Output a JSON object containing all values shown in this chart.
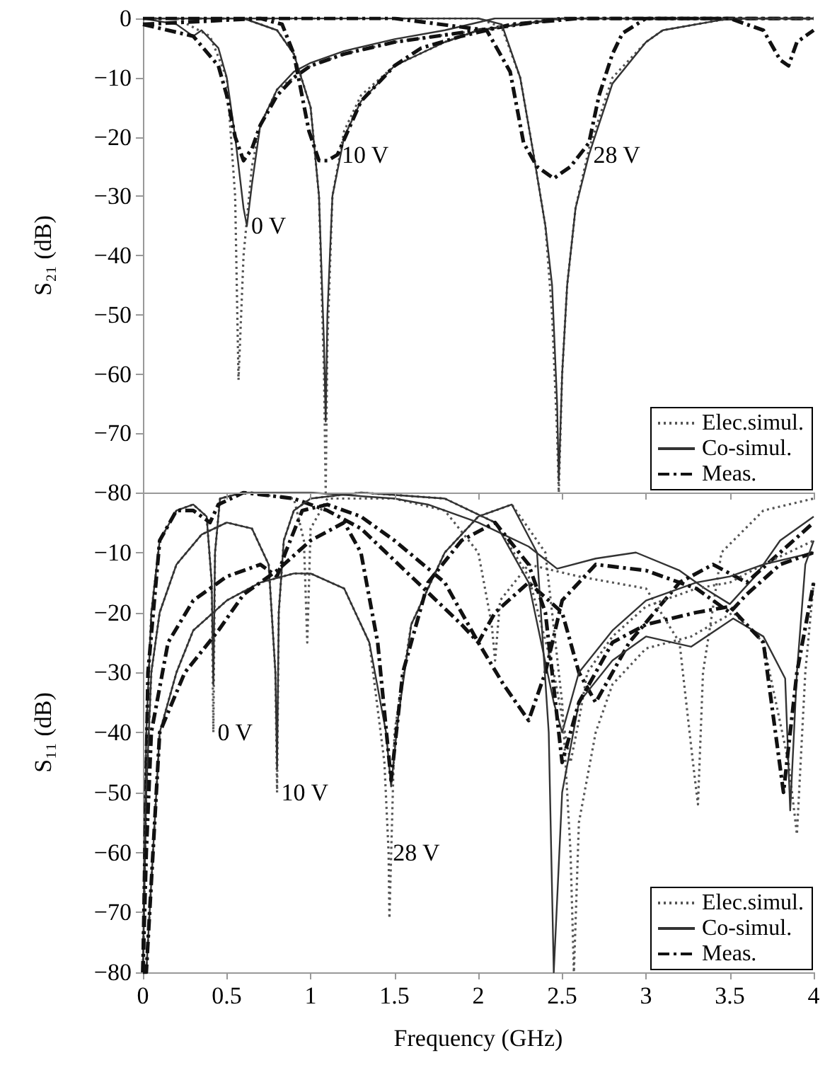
{
  "chart_data": [
    {
      "type": "line",
      "ylabel": "S₂₁ (dB)",
      "xlim": [
        0,
        4
      ],
      "xticks": [
        0,
        0.5,
        1,
        1.5,
        2,
        2.5,
        3,
        3.5,
        4
      ],
      "ylim": [
        -80,
        0
      ],
      "yticks": [
        0,
        -10,
        -20,
        -30,
        -40,
        -50,
        -60,
        -70,
        -80
      ],
      "tick_labels": "y",
      "grid": false,
      "legend": "bottom right",
      "marker": "none",
      "annotations": [
        {
          "text": "0 V",
          "x": 0.62,
          "y": -35
        },
        {
          "text": "10 V",
          "x": 1.16,
          "y": -23
        },
        {
          "text": "28 V",
          "x": 2.66,
          "y": -23
        }
      ],
      "series": [
        {
          "name": "Elec.simul.",
          "color": "#555555",
          "line_style": "dotted",
          "x": [
            0,
            0.2,
            0.4,
            0.5,
            0.55,
            0.57,
            0.6,
            0.65,
            0.7,
            0.8,
            1.0,
            1.2,
            1.5,
            2,
            2.5,
            3,
            4
          ],
          "values": [
            0,
            0,
            -3,
            -10,
            -30,
            -61,
            -40,
            -25,
            -18,
            -12,
            -8,
            -6,
            -4,
            -2,
            0,
            0,
            0
          ]
        },
        {
          "name": "Co-simul.",
          "color": "#333333",
          "line_style": "solid",
          "x": [
            0,
            0.2,
            0.3,
            0.35,
            0.45,
            0.5,
            0.55,
            0.6,
            0.62,
            0.65,
            0.7,
            0.8,
            0.9,
            1.0,
            1.2,
            1.5,
            1.8,
            2.1,
            2.5,
            3,
            3.5,
            4
          ],
          "values": [
            0,
            -1,
            -3,
            -2,
            -5,
            -10,
            -20,
            -32,
            -35,
            -28,
            -18,
            -12,
            -9,
            -7.5,
            -5.5,
            -3.5,
            -2,
            0,
            0,
            0,
            0,
            0
          ]
        },
        {
          "name": "Meas.",
          "color": "#111111",
          "line_style": "dashed",
          "x": [
            0,
            0.3,
            0.45,
            0.5,
            0.55,
            0.6,
            0.65,
            0.7,
            0.8,
            0.9,
            1.0,
            1.2,
            1.5,
            2,
            2.5,
            3,
            3.5,
            4
          ],
          "values": [
            -1,
            -3,
            -8,
            -13,
            -20,
            -24,
            -22,
            -18,
            -13,
            -10,
            -8,
            -6,
            -4,
            -2,
            0,
            0,
            0,
            0
          ]
        },
        {
          "color": "#555555",
          "line_style": "dotted",
          "x": [
            0,
            0.6,
            0.8,
            0.9,
            1.0,
            1.05,
            1.08,
            1.09,
            1.1,
            1.13,
            1.2,
            1.3,
            1.5,
            1.8,
            2.0,
            2.5,
            3,
            4
          ],
          "values": [
            0,
            0,
            -2,
            -6,
            -15,
            -30,
            -60,
            -80,
            -55,
            -30,
            -19,
            -13,
            -8,
            -4,
            -2,
            0,
            0,
            0
          ]
        },
        {
          "color": "#333333",
          "line_style": "solid",
          "x": [
            0,
            0.6,
            0.8,
            0.9,
            1.0,
            1.05,
            1.08,
            1.09,
            1.1,
            1.13,
            1.2,
            1.3,
            1.5,
            1.8,
            2.0,
            2.5,
            3,
            4
          ],
          "values": [
            0,
            0,
            -2,
            -6,
            -15,
            -30,
            -55,
            -68,
            -50,
            -30,
            -20,
            -14,
            -8,
            -4,
            -2,
            0,
            0,
            0
          ]
        },
        {
          "color": "#111111",
          "line_style": "dashed",
          "x": [
            0,
            0.7,
            0.83,
            0.9,
            0.99,
            1.05,
            1.1,
            1.16,
            1.3,
            1.5,
            1.66,
            1.9,
            2.2,
            2.6,
            3,
            4
          ],
          "values": [
            -1,
            0,
            -1,
            -6,
            -19,
            -24,
            -24,
            -23,
            -14,
            -8,
            -5,
            -3,
            -1,
            0,
            0,
            0
          ]
        },
        {
          "color": "#555555",
          "line_style": "dotted",
          "x": [
            0,
            1.5,
            2.0,
            2.14,
            2.25,
            2.33,
            2.4,
            2.44,
            2.47,
            2.48,
            2.5,
            2.53,
            2.58,
            2.66,
            2.8,
            3.0,
            3.1,
            3.5,
            4
          ],
          "values": [
            0,
            0,
            0,
            -1.5,
            -10,
            -23,
            -35,
            -50,
            -70,
            -80,
            -60,
            -45,
            -32,
            -22,
            -10,
            -4,
            -2,
            0,
            0
          ]
        },
        {
          "color": "#333333",
          "line_style": "solid",
          "x": [
            0,
            1.5,
            2.0,
            2.14,
            2.25,
            2.33,
            2.4,
            2.44,
            2.47,
            2.48,
            2.5,
            2.53,
            2.58,
            2.66,
            2.8,
            3.0,
            3.1,
            3.5,
            4
          ],
          "values": [
            0,
            0,
            0,
            -1,
            -10,
            -23,
            -35,
            -45,
            -65,
            -78,
            -60,
            -45,
            -32,
            -23,
            -11,
            -4,
            -2,
            0,
            0
          ]
        },
        {
          "color": "#111111",
          "line_style": "dashed",
          "x": [
            0,
            1.5,
            2.05,
            2.19,
            2.27,
            2.35,
            2.45,
            2.55,
            2.66,
            2.72,
            2.8,
            2.86,
            3.0,
            3.5,
            3.7,
            3.8,
            3.85,
            3.9,
            4
          ],
          "values": [
            0,
            0,
            -2,
            -9,
            -21,
            -25,
            -27,
            -25,
            -21,
            -13,
            -6,
            -2.5,
            0,
            0,
            -2,
            -7,
            -8,
            -4,
            -2
          ]
        }
      ]
    },
    {
      "type": "line",
      "xlabel": "Frequency (GHz)",
      "ylabel": "S₁₁ (dB)",
      "xlim": [
        0,
        4
      ],
      "xticks": [
        0,
        0.5,
        1,
        1.5,
        2,
        2.5,
        3,
        3.5,
        4
      ],
      "ylim": [
        -80,
        0
      ],
      "yticks": [
        {
          "value": 0,
          "label": null
        },
        -10,
        -20,
        -30,
        -40,
        -50,
        -60,
        -70,
        -80
      ],
      "grid": false,
      "legend": "bottom right",
      "marker": "none",
      "annotations": [
        {
          "text": "0 V",
          "x": 0.42,
          "y": -40
        },
        {
          "text": "10 V",
          "x": 0.8,
          "y": -50
        },
        {
          "text": "28 V",
          "x": 1.465,
          "y": -60
        }
      ],
      "series": [
        {
          "name": "Elec.simul.",
          "color": "#555555",
          "line_style": "dotted",
          "x": [
            0,
            0.02,
            0.05,
            0.1,
            0.2,
            0.3,
            0.38,
            0.41,
            0.42,
            0.43,
            0.46,
            0.6,
            0.9,
            0.96,
            0.98,
            1.0,
            1.1,
            1.5,
            1.8,
            2.0,
            2.08,
            2.1,
            2.13,
            2.3,
            2.6,
            3.0,
            3.2,
            3.28,
            3.31,
            3.34,
            3.45,
            3.7,
            4
          ],
          "values": [
            -80,
            -40,
            -20,
            -8,
            -3,
            -2,
            -4,
            -15,
            -40,
            -10,
            -1,
            0,
            -1,
            -8,
            -25,
            -6,
            -1,
            -1,
            -3,
            -10,
            -22,
            -28,
            -18,
            -12,
            -14,
            -16,
            -25,
            -45,
            -52,
            -30,
            -10,
            -3,
            -1
          ]
        },
        {
          "name": "Co-simul.",
          "color": "#333333",
          "line_style": "solid",
          "x": [
            0,
            0.02,
            0.05,
            0.1,
            0.2,
            0.3,
            0.38,
            0.41,
            0.42,
            0.43,
            0.46,
            0.6,
            1.0,
            1.5,
            1.7,
            2.0,
            2.3,
            2.47,
            2.7,
            2.94,
            3.2,
            3.35,
            3.5,
            3.65,
            3.8,
            4
          ],
          "values": [
            -80,
            -40,
            -20,
            -8,
            -3,
            -2,
            -4,
            -15,
            -32,
            -10,
            -1,
            0,
            0,
            -1,
            -2,
            -5,
            -9,
            -12.7,
            -11,
            -10,
            -13,
            -16,
            -18.6,
            -14,
            -8,
            -4
          ]
        },
        {
          "name": "Meas.",
          "color": "#111111",
          "line_style": "dashed",
          "x": [
            0,
            0.03,
            0.1,
            0.2,
            0.3,
            0.4,
            0.45,
            0.6,
            0.9,
            1.1,
            1.3,
            1.45,
            1.6,
            1.75,
            1.9,
            2.0,
            2.1,
            2.3,
            2.5,
            2.6,
            2.7,
            2.9,
            3.2,
            3.4,
            3.6,
            3.8,
            4
          ],
          "values": [
            -80,
            -30,
            -8,
            -3,
            -3,
            -5,
            -2,
            0,
            -1,
            -3,
            -6,
            -10,
            -14,
            -18,
            -22,
            -25,
            -20,
            -15,
            -20,
            -30,
            -35,
            -25,
            -15,
            -12,
            -15,
            -10,
            -5
          ]
        },
        {
          "color": "#555555",
          "line_style": "dotted",
          "x": [
            0,
            0.02,
            0.05,
            0.1,
            0.2,
            0.35,
            0.5,
            0.65,
            0.75,
            0.79,
            0.8,
            0.81,
            0.84,
            0.9,
            1.0,
            1.3,
            1.8,
            2.1,
            2.3,
            2.45,
            2.55,
            2.6,
            2.65,
            2.8,
            3.0,
            3.3,
            3.5,
            3.7,
            4
          ],
          "values": [
            -80,
            -50,
            -30,
            -20,
            -12,
            -7,
            -5,
            -6,
            -12,
            -30,
            -50,
            -20,
            -8,
            -3,
            -1,
            0,
            -1,
            -5,
            -14,
            -30,
            -45,
            -38,
            -30,
            -24,
            -19,
            -16,
            -15,
            -12,
            -8
          ]
        },
        {
          "color": "#333333",
          "line_style": "solid",
          "x": [
            0,
            0.02,
            0.05,
            0.1,
            0.2,
            0.35,
            0.5,
            0.65,
            0.75,
            0.79,
            0.8,
            0.81,
            0.84,
            0.9,
            1.0,
            1.3,
            1.8,
            2.1,
            2.3,
            2.45,
            2.5,
            2.6,
            2.8,
            3.0,
            3.3,
            3.5,
            3.7,
            4
          ],
          "values": [
            -80,
            -50,
            -30,
            -20,
            -12,
            -7,
            -5,
            -6,
            -12,
            -30,
            -46,
            -20,
            -8,
            -3,
            -1,
            0,
            -1,
            -5,
            -15,
            -35,
            -40,
            -30,
            -23,
            -18,
            -15,
            -14,
            -12,
            -10
          ]
        },
        {
          "color": "#111111",
          "line_style": "dashed",
          "x": [
            0,
            0.02,
            0.05,
            0.15,
            0.3,
            0.5,
            0.7,
            0.8,
            0.85,
            0.95,
            1.1,
            1.3,
            1.5,
            1.8,
            2.0,
            2.15,
            2.3,
            2.4,
            2.5,
            2.7,
            3.0,
            3.3,
            3.5,
            3.6,
            3.8,
            4
          ],
          "values": [
            -80,
            -60,
            -40,
            -25,
            -18,
            -14,
            -12,
            -14,
            -10,
            -3,
            -2,
            -4,
            -8,
            -15,
            -25,
            -32,
            -38,
            -30,
            -18,
            -12,
            -13,
            -16,
            -20,
            -17,
            -12,
            -10
          ]
        },
        {
          "color": "#555555",
          "line_style": "dotted",
          "x": [
            0,
            0.02,
            0.1,
            0.2,
            0.3,
            0.5,
            0.7,
            0.9,
            1.0,
            1.2,
            1.35,
            1.44,
            1.465,
            1.47,
            1.5,
            1.6,
            1.8,
            2.0,
            2.2,
            2.4,
            2.5,
            2.55,
            2.57,
            2.6,
            2.7,
            2.8,
            3.0,
            3.27,
            3.52,
            3.7,
            3.85,
            3.9,
            3.95,
            4
          ],
          "values": [
            -80,
            -80,
            -40,
            -30,
            -23,
            -18,
            -15,
            -13.5,
            -13.5,
            -16,
            -25,
            -45,
            -60,
            -71,
            -40,
            -22,
            -10,
            -4,
            -2,
            -10,
            -35,
            -60,
            -80,
            -55,
            -40,
            -32,
            -26,
            -24,
            -20,
            -25,
            -45,
            -57,
            -30,
            -15
          ]
        },
        {
          "color": "#333333",
          "line_style": "solid",
          "x": [
            0,
            0.02,
            0.1,
            0.2,
            0.3,
            0.5,
            0.7,
            0.9,
            1.0,
            1.2,
            1.35,
            1.45,
            1.48,
            1.52,
            1.6,
            1.8,
            2.0,
            2.2,
            2.35,
            2.42,
            2.45,
            2.5,
            2.6,
            2.8,
            3.0,
            3.27,
            3.52,
            3.7,
            3.83,
            3.86,
            3.9,
            3.95,
            4
          ],
          "values": [
            -80,
            -80,
            -40,
            -30,
            -23,
            -18,
            -15,
            -13.5,
            -13.5,
            -16,
            -25,
            -40,
            -49,
            -38,
            -22,
            -10,
            -4,
            -2,
            -10,
            -40,
            -80,
            -50,
            -35,
            -28,
            -24,
            -25.7,
            -21,
            -24,
            -31,
            -53,
            -30,
            -12,
            -8
          ]
        },
        {
          "color": "#111111",
          "line_style": "dashed",
          "x": [
            0,
            0.02,
            0.1,
            0.25,
            0.45,
            0.6,
            0.7,
            0.8,
            1.0,
            1.2,
            1.3,
            1.4,
            1.48,
            1.55,
            1.7,
            1.9,
            2.1,
            2.3,
            2.4,
            2.5,
            2.6,
            2.8,
            3.0,
            3.3,
            3.5,
            3.7,
            3.82,
            3.9,
            4
          ],
          "values": [
            -80,
            -80,
            -40,
            -30,
            -23,
            -17,
            -15,
            -13,
            -8,
            -5,
            -10,
            -25,
            -48,
            -30,
            -15,
            -8,
            -5,
            -12,
            -20,
            -45,
            -35,
            -25,
            -22,
            -20,
            -19,
            -25,
            -50,
            -30,
            -15
          ]
        }
      ]
    }
  ]
}
